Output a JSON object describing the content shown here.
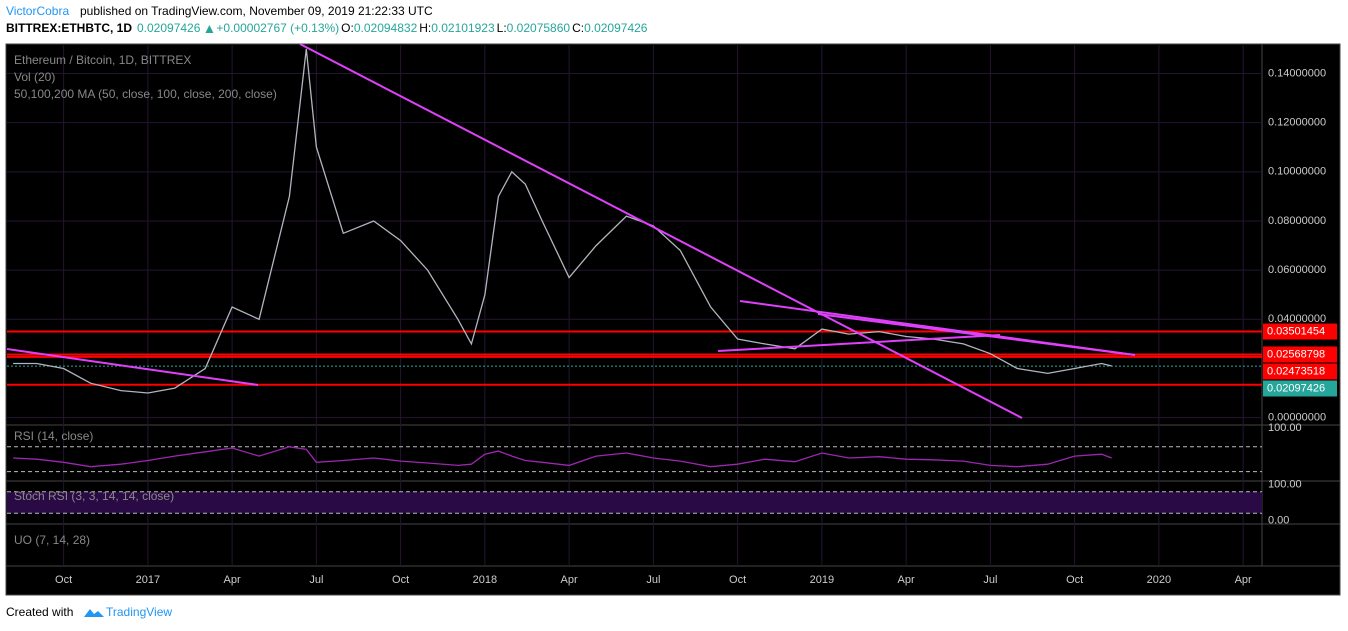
{
  "header": {
    "author": "VictorCobra",
    "published": "published on TradingView.com, November 09, 2019 21:22:33 UTC",
    "quote": {
      "symbol": "BITTREX:ETHBTC, 1D",
      "price": "0.02097426",
      "change": "+0.00002767 (+0.13%)",
      "ohlc": [
        {
          "key": "O:",
          "value": "0.02094832"
        },
        {
          "key": "H:",
          "value": "0.02101923"
        },
        {
          "key": "L:",
          "value": "0.02075860"
        },
        {
          "key": "C:",
          "value": "0.02097426"
        }
      ]
    }
  },
  "chart_data": {
    "type": "line",
    "title": "Ethereum / Bitcoin, 1D, BITTREX",
    "indicators": [
      "Vol (20)",
      "50,100,200 MA (50, close, 100, close, 200, close)"
    ],
    "color": "#b2b5be",
    "x": [
      2016.6,
      2016.67,
      2016.75,
      2016.83,
      2016.92,
      2017.0,
      2017.08,
      2017.17,
      2017.25,
      2017.33,
      2017.42,
      2017.47,
      2017.5,
      2017.58,
      2017.67,
      2017.75,
      2017.83,
      2017.92,
      2017.96,
      2018.0,
      2018.04,
      2018.08,
      2018.12,
      2018.17,
      2018.25,
      2018.33,
      2018.42,
      2018.5,
      2018.58,
      2018.67,
      2018.75,
      2018.83,
      2018.92,
      2019.0,
      2019.08,
      2019.17,
      2019.25,
      2019.33,
      2019.42,
      2019.5,
      2019.58,
      2019.67,
      2019.75,
      2019.83,
      2019.86
    ],
    "values": [
      0.022,
      0.022,
      0.02,
      0.014,
      0.011,
      0.01,
      0.012,
      0.02,
      0.045,
      0.04,
      0.09,
      0.15,
      0.11,
      0.075,
      0.08,
      0.072,
      0.06,
      0.04,
      0.03,
      0.05,
      0.09,
      0.1,
      0.095,
      0.08,
      0.057,
      0.07,
      0.082,
      0.078,
      0.068,
      0.045,
      0.032,
      0.03,
      0.028,
      0.036,
      0.034,
      0.035,
      0.033,
      0.032,
      0.03,
      0.026,
      0.02,
      0.018,
      0.02,
      0.022,
      0.021
    ],
    "xlim": [
      2016.582,
      2020.306
    ],
    "ylim": [
      -0.003,
      0.152
    ],
    "yticks": [
      {
        "value": 0,
        "label": "0.00000000"
      },
      {
        "value": 0.04,
        "label": "0.04000000"
      },
      {
        "value": 0.06,
        "label": "0.06000000"
      },
      {
        "value": 0.08,
        "label": "0.08000000"
      },
      {
        "value": 0.1,
        "label": "0.10000000"
      },
      {
        "value": 0.12,
        "label": "0.12000000"
      },
      {
        "value": 0.14,
        "label": "0.14000000"
      }
    ],
    "xticks": [
      {
        "value": 2016.75,
        "label": "Oct"
      },
      {
        "value": 2017,
        "label": "2017"
      },
      {
        "value": 2017.25,
        "label": "Apr"
      },
      {
        "value": 2017.5,
        "label": "Jul"
      },
      {
        "value": 2017.75,
        "label": "Oct"
      },
      {
        "value": 2018,
        "label": "2018"
      },
      {
        "value": 2018.25,
        "label": "Apr"
      },
      {
        "value": 2018.5,
        "label": "Jul"
      },
      {
        "value": 2018.75,
        "label": "Oct"
      },
      {
        "value": 2019,
        "label": "2019"
      },
      {
        "value": 2019.25,
        "label": "Apr"
      },
      {
        "value": 2019.5,
        "label": "Jul"
      },
      {
        "value": 2019.75,
        "label": "Oct"
      },
      {
        "value": 2020,
        "label": "2020"
      },
      {
        "value": 2020.25,
        "label": "Apr"
      }
    ],
    "levels": [
      {
        "value": 0.03501454,
        "label": "0.03501454",
        "color": "#ff0000"
      },
      {
        "value": 0.02568798,
        "label": "0.02568798",
        "color": "#ff0000"
      },
      {
        "value": 0.02473518,
        "label": "0.02473518",
        "color": "#ff0000"
      },
      {
        "value": 0.02097426,
        "label": "0.02097426",
        "color": "#26a69a"
      },
      {
        "value": 0.0134,
        "color": "#ff0000"
      }
    ],
    "rsi": {
      "title": "RSI (14, close)",
      "color": "#9c27b0",
      "ylim": [
        15,
        105
      ],
      "yticks": [
        {
          "value": 100,
          "label": "100.00"
        }
      ],
      "bands": [
        30,
        70
      ],
      "values": [
        52,
        50,
        45,
        38,
        42,
        48,
        55,
        62,
        68,
        55,
        70,
        66,
        45,
        48,
        52,
        47,
        44,
        40,
        42,
        58,
        63,
        55,
        48,
        45,
        40,
        55,
        60,
        52,
        47,
        38,
        42,
        50,
        46,
        60,
        52,
        54,
        50,
        49,
        47,
        40,
        38,
        42,
        55,
        58,
        52
      ]
    },
    "stoch": {
      "title": "Stoch RSI (3, 3, 14, 14, close)",
      "ylim": [
        -10,
        110
      ],
      "yticks": [
        {
          "value": 100,
          "label": "100.00"
        },
        {
          "value": 0,
          "label": "0.00"
        }
      ],
      "bands": [
        20,
        80
      ]
    },
    "uo": {
      "title": "UO (7, 14, 28)"
    }
  },
  "footer": {
    "created": "Created with",
    "brand": "TradingView"
  }
}
